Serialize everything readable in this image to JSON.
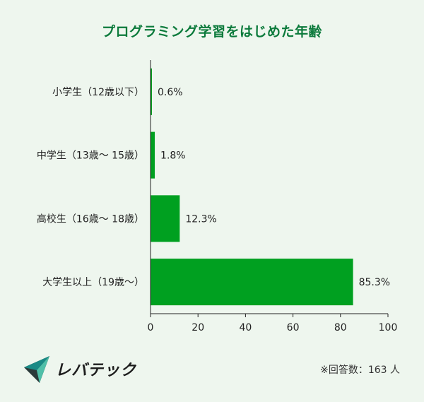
{
  "chart_data": {
    "type": "bar",
    "orientation": "horizontal",
    "title": "プログラミング学習をはじめた年齢",
    "categories": [
      "小学生（12歳以下）",
      "中学生（13歳〜 15歳）",
      "高校生（16歳〜 18歳）",
      "大学生以上（19歳〜）"
    ],
    "values": [
      0.6,
      1.8,
      12.3,
      85.3
    ],
    "value_labels": [
      "0.6%",
      "1.8%",
      "12.3%",
      "85.3%"
    ],
    "xlim": [
      0,
      100
    ],
    "xticks": [
      0,
      20,
      40,
      60,
      80,
      100
    ],
    "xtick_labels": [
      "0",
      "20",
      "40",
      "60",
      "80",
      "100"
    ],
    "bar_color": "#00a020",
    "grid": false
  },
  "footer": {
    "logo_text": "レバテック",
    "note": "※回答数：163 人"
  },
  "colors": {
    "background": "#eef6ee",
    "title": "#0b7a3b",
    "logo_teal": "#1a8a85",
    "logo_dark": "#2b3a3a"
  }
}
